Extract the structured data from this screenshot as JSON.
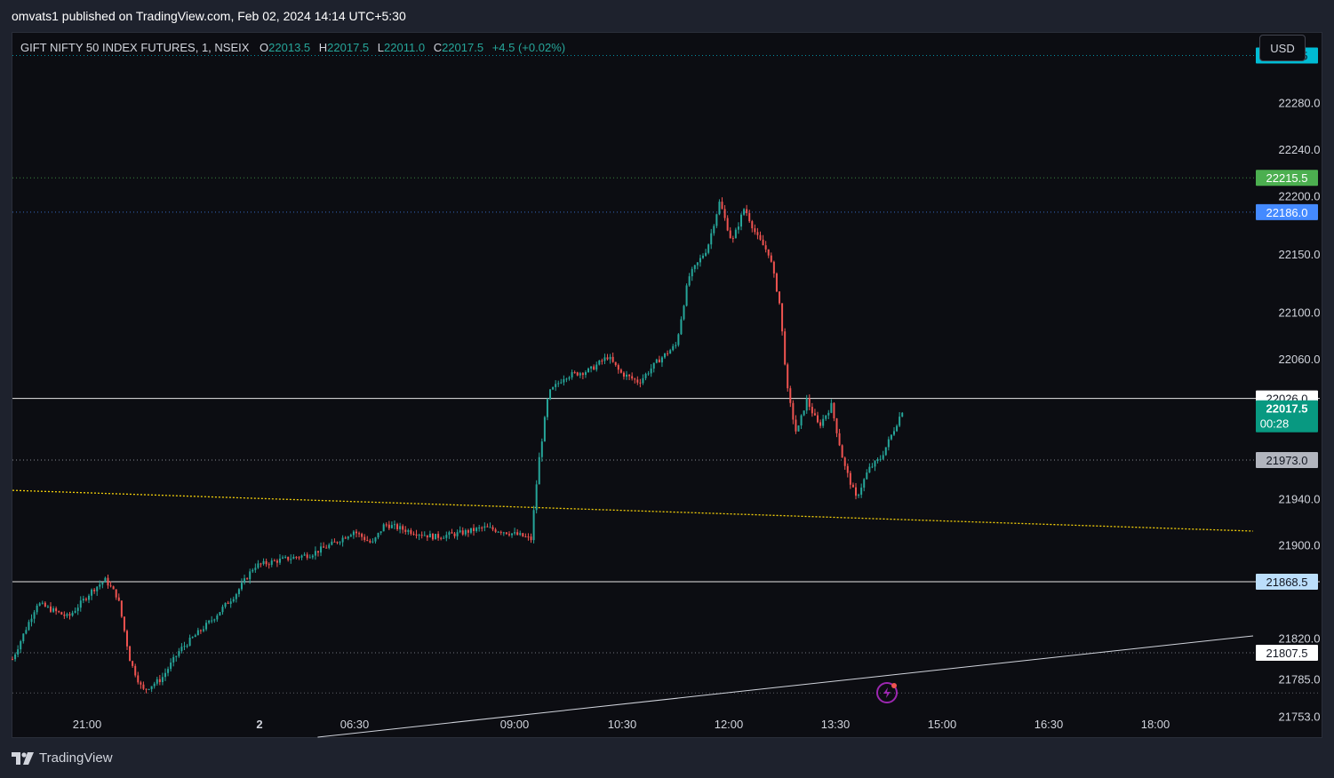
{
  "header": {
    "published_text": "omvats1 published on TradingView.com, Feb 02, 2024 14:14 UTC+5:30"
  },
  "legend": {
    "symbol": "GIFT NIFTY 50 INDEX FUTURES, 1, NSEIX",
    "o_label": "O",
    "o_value": "22013.5",
    "h_label": "H",
    "h_value": "22017.5",
    "l_label": "L",
    "l_value": "22011.0",
    "c_label": "C",
    "c_value": "22017.5",
    "change": "+4.5 (+0.02%)"
  },
  "currency_button": "USD",
  "footer": {
    "brand": "TradingView"
  },
  "colors": {
    "up": "#26a69a",
    "down": "#ef5350",
    "background": "#0c0d12",
    "trendline_yellow": "#f5d10a",
    "last_price_bg": "#089981"
  },
  "chart_data": {
    "type": "candlestick",
    "timeframe": "1",
    "y_axis": {
      "ylim": [
        21735,
        22340
      ],
      "tick_labels": [
        "22280.0",
        "22240.0",
        "22200.0",
        "22150.0",
        "22100.0",
        "22060.0",
        "21940.0",
        "21900.0",
        "21820.0",
        "21785.0",
        "21753.0"
      ],
      "tick_values": [
        22280,
        22240,
        22200,
        22150,
        22100,
        22060,
        21940,
        21900,
        21820,
        21785,
        21753
      ]
    },
    "x_axis": {
      "tick_labels": [
        "21:00",
        "2",
        "06:30",
        "09:00",
        "10:30",
        "12:00",
        "13:30",
        "15:00",
        "16:30",
        "18:00"
      ]
    },
    "price_levels": [
      {
        "label": "22320.5",
        "value": 22320.5,
        "color": "#00bcd4",
        "text_color": "#131722",
        "line": "dotted"
      },
      {
        "label": "22215.5",
        "value": 22215.5,
        "color": "#4caf50",
        "text_color": "#ffffff",
        "line": "dotted"
      },
      {
        "label": "22186.0",
        "value": 22186.0,
        "color": "#448aff",
        "text_color": "#ffffff",
        "line": "dotted"
      },
      {
        "label": "22026.0",
        "value": 22026.0,
        "color": "#ffffff",
        "text_color": "#131722",
        "line": "solid"
      },
      {
        "label": "21973.0",
        "value": 21973.0,
        "color": "#b2b5be",
        "text_color": "#131722",
        "line": "dotted"
      },
      {
        "label": "21868.5",
        "value": 21868.5,
        "color": "#bbdefb",
        "text_color": "#131722",
        "line": "solid"
      },
      {
        "label": "21807.5",
        "value": 21807.5,
        "color": "#ffffff",
        "text_color": "#131722",
        "line": "dotted"
      }
    ],
    "unlabeled_levels": [
      21773
    ],
    "last_price": {
      "label": "22017.5",
      "value": 22017.5,
      "countdown": "00:28"
    },
    "trendlines": [
      {
        "color": "#f5d10a",
        "style": "dotted",
        "from": [
          0,
          21947
        ],
        "to": [
          1,
          21912
        ]
      },
      {
        "color": "#d1d4dc",
        "style": "solid",
        "from": [
          0.246,
          21735
        ],
        "to": [
          1,
          21822
        ]
      }
    ],
    "price_path": [
      [
        0.0,
        21802
      ],
      [
        0.02,
        21850
      ],
      [
        0.045,
        21838
      ],
      [
        0.065,
        21862
      ],
      [
        0.075,
        21870
      ],
      [
        0.085,
        21855
      ],
      [
        0.095,
        21800
      ],
      [
        0.105,
        21775
      ],
      [
        0.12,
        21785
      ],
      [
        0.135,
        21810
      ],
      [
        0.16,
        21835
      ],
      [
        0.18,
        21858
      ],
      [
        0.195,
        21882
      ],
      [
        0.215,
        21887
      ],
      [
        0.24,
        21892
      ],
      [
        0.26,
        21902
      ],
      [
        0.275,
        21912
      ],
      [
        0.29,
        21901
      ],
      [
        0.3,
        21918
      ],
      [
        0.32,
        21912
      ],
      [
        0.34,
        21907
      ],
      [
        0.36,
        21910
      ],
      [
        0.38,
        21915
      ],
      [
        0.395,
        21912
      ],
      [
        0.41,
        21908
      ],
      [
        0.418,
        21905
      ],
      [
        0.424,
        21970
      ],
      [
        0.432,
        22030
      ],
      [
        0.445,
        22045
      ],
      [
        0.465,
        22050
      ],
      [
        0.48,
        22062
      ],
      [
        0.49,
        22048
      ],
      [
        0.505,
        22040
      ],
      [
        0.52,
        22058
      ],
      [
        0.535,
        22072
      ],
      [
        0.545,
        22130
      ],
      [
        0.56,
        22155
      ],
      [
        0.57,
        22195
      ],
      [
        0.58,
        22160
      ],
      [
        0.59,
        22190
      ],
      [
        0.6,
        22165
      ],
      [
        0.61,
        22150
      ],
      [
        0.618,
        22110
      ],
      [
        0.625,
        22030
      ],
      [
        0.632,
        21995
      ],
      [
        0.64,
        22025
      ],
      [
        0.65,
        22002
      ],
      [
        0.66,
        22020
      ],
      [
        0.67,
        21970
      ],
      [
        0.68,
        21940
      ],
      [
        0.69,
        21965
      ],
      [
        0.7,
        21975
      ],
      [
        0.71,
        21998
      ],
      [
        0.718,
        22017.5
      ]
    ]
  }
}
